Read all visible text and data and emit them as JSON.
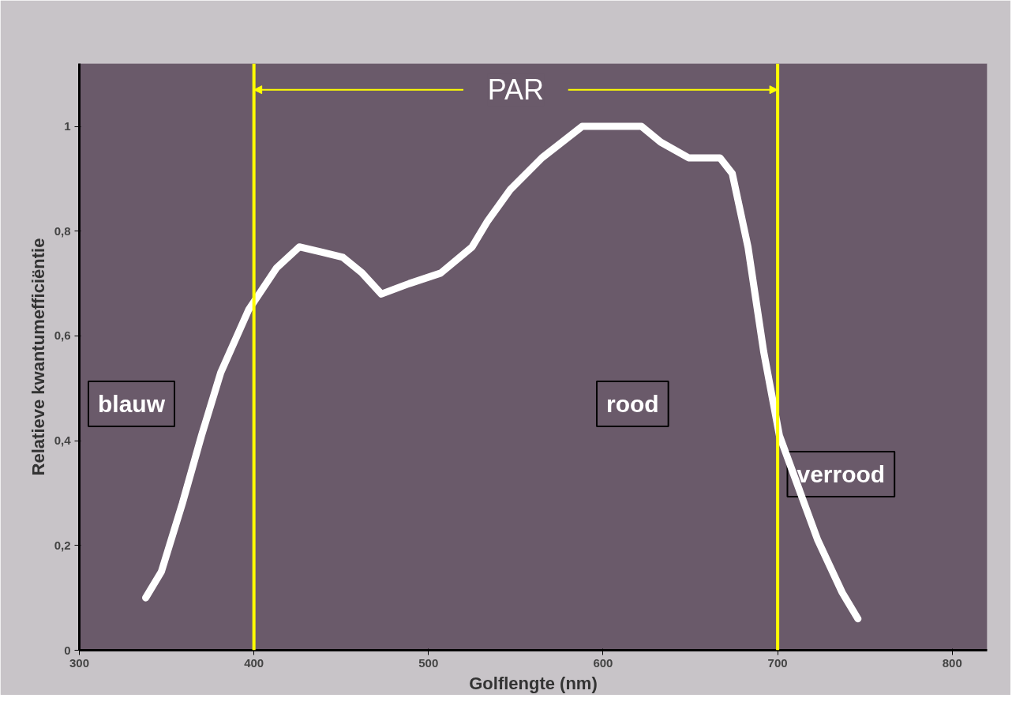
{
  "chart_data": {
    "type": "line",
    "xlabel": "Golflengte (nm)",
    "ylabel": "Relatieve kwantumefficiëntie",
    "x": [
      338,
      347,
      359,
      370,
      381,
      397,
      413,
      426,
      439,
      451,
      462,
      473,
      489,
      507,
      525,
      534,
      547,
      565,
      588,
      606,
      622,
      633,
      649,
      667,
      674,
      683,
      692,
      701,
      712,
      723,
      737,
      746
    ],
    "series": [
      {
        "color": "#ffffff",
        "values": [
          0.1,
          0.15,
          0.28,
          0.41,
          0.53,
          0.65,
          0.73,
          0.77,
          0.76,
          0.75,
          0.72,
          0.68,
          0.7,
          0.72,
          0.77,
          0.82,
          0.88,
          0.94,
          1.0,
          1.0,
          1.0,
          0.97,
          0.94,
          0.94,
          0.91,
          0.77,
          0.57,
          0.41,
          0.31,
          0.21,
          0.11,
          0.06
        ]
      }
    ],
    "xlim": [
      300,
      820
    ],
    "ylim": [
      0,
      1.12
    ],
    "xticks": [
      300,
      400,
      500,
      600,
      700,
      800
    ],
    "yticks": [
      0,
      {
        "value": 0.2,
        "label": "0,2"
      },
      {
        "value": 0.4,
        "label": "0,4"
      },
      {
        "value": 0.6,
        "label": "0,6"
      },
      {
        "value": 0.8,
        "label": "0,8"
      },
      1
    ],
    "ref_lines": [
      {
        "axis": "x",
        "value": 400,
        "color": "#ffff00"
      },
      {
        "axis": "x",
        "value": 700,
        "color": "#ffff00"
      }
    ],
    "annotations": [
      {
        "text": "PAR",
        "x": 400,
        "y": 1.07
      },
      "blauw",
      "rood",
      "verrood"
    ],
    "grid": false,
    "marker": "none",
    "line_style": "solid"
  }
}
